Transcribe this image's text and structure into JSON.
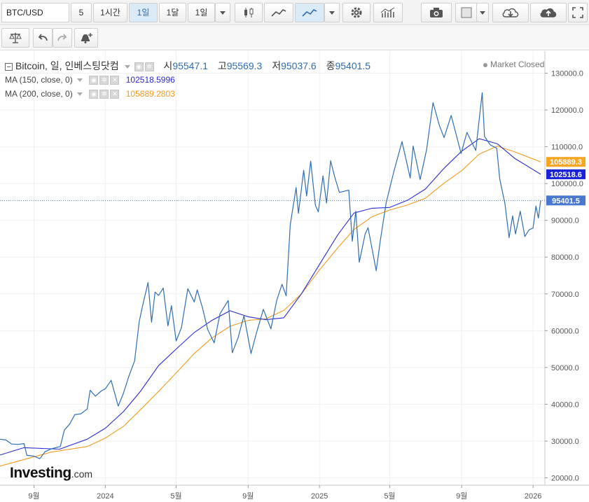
{
  "toolbar": {
    "symbol": "BTC/USD",
    "intervals": [
      "5",
      "1시간",
      "1일",
      "1달",
      "1일"
    ],
    "active_interval_index": 2
  },
  "colors": {
    "price_line": "#2f6db3",
    "ma150": "#2a2ad6",
    "ma200": "#f29b1f",
    "last_price_tag": "#4a78d0",
    "ma150_tag": "#1a22d9",
    "ma200_tag": "#f5a623",
    "grid": "#f0f0f0"
  },
  "legend": {
    "main": {
      "title": "Bitcoin, 일, 인베스팅닷컴",
      "open_label": "시",
      "open": "95547.1",
      "high_label": "고",
      "high": "95569.3",
      "low_label": "저",
      "low": "95037.6",
      "close_label": "종",
      "close": "95401.5"
    },
    "ma150": {
      "label": "MA (150, close, 0)",
      "value": "102518.5996"
    },
    "ma200": {
      "label": "MA (200, close, 0)",
      "value": "105889.2803"
    }
  },
  "market_status": "Market Closed",
  "logo": {
    "brand": "Investing",
    "suffix": ".com"
  },
  "chart_data": {
    "type": "line",
    "x_axis": {
      "tick_labels": [
        "9월",
        "2024",
        "5월",
        "9월",
        "2025",
        "5월",
        "9월",
        "2026"
      ],
      "tick_dates": [
        "2023-09-01",
        "2024-01-01",
        "2024-05-01",
        "2024-09-01",
        "2025-01-01",
        "2025-05-01",
        "2025-09-01",
        "2026-01-01"
      ],
      "range": [
        "2023-07-05",
        "2026-01-14"
      ]
    },
    "y_axis": {
      "tick_labels": [
        "20000.0",
        "30000.0",
        "40000.0",
        "50000.0",
        "60000.0",
        "70000.0",
        "80000.0",
        "90000.0",
        "100000.0",
        "110000.0",
        "120000.0",
        "130000.0"
      ],
      "range": [
        18000,
        136000
      ]
    },
    "price_tags": {
      "close": "95401.5",
      "ma150": "102518.6",
      "ma200": "105889.3"
    },
    "series": [
      {
        "id": "price",
        "values": [
          [
            "2023-07-05",
            30500
          ],
          [
            "2023-07-15",
            30300
          ],
          [
            "2023-07-25",
            29200
          ],
          [
            "2023-08-05",
            29100
          ],
          [
            "2023-08-15",
            29300
          ],
          [
            "2023-08-20",
            26100
          ],
          [
            "2023-09-01",
            25900
          ],
          [
            "2023-09-11",
            25200
          ],
          [
            "2023-09-20",
            27100
          ],
          [
            "2023-10-01",
            27900
          ],
          [
            "2023-10-16",
            28500
          ],
          [
            "2023-10-23",
            33000
          ],
          [
            "2023-11-01",
            34600
          ],
          [
            "2023-11-10",
            37200
          ],
          [
            "2023-11-20",
            37400
          ],
          [
            "2023-12-01",
            38700
          ],
          [
            "2023-12-06",
            43800
          ],
          [
            "2023-12-15",
            42200
          ],
          [
            "2023-12-25",
            43600
          ],
          [
            "2024-01-01",
            44200
          ],
          [
            "2024-01-11",
            46500
          ],
          [
            "2024-01-23",
            39500
          ],
          [
            "2024-02-01",
            43000
          ],
          [
            "2024-02-10",
            47500
          ],
          [
            "2024-02-20",
            51800
          ],
          [
            "2024-02-28",
            62500
          ],
          [
            "2024-03-05",
            67000
          ],
          [
            "2024-03-14",
            73100
          ],
          [
            "2024-03-20",
            62300
          ],
          [
            "2024-03-26",
            70500
          ],
          [
            "2024-04-01",
            69600
          ],
          [
            "2024-04-09",
            71600
          ],
          [
            "2024-04-17",
            61300
          ],
          [
            "2024-04-23",
            66800
          ],
          [
            "2024-05-01",
            57200
          ],
          [
            "2024-05-10",
            60800
          ],
          [
            "2024-05-21",
            71400
          ],
          [
            "2024-06-01",
            67800
          ],
          [
            "2024-06-06",
            71100
          ],
          [
            "2024-06-15",
            66200
          ],
          [
            "2024-06-24",
            60300
          ],
          [
            "2024-07-05",
            56700
          ],
          [
            "2024-07-15",
            64600
          ],
          [
            "2024-07-29",
            68200
          ],
          [
            "2024-08-05",
            54000
          ],
          [
            "2024-08-15",
            58100
          ],
          [
            "2024-08-25",
            64100
          ],
          [
            "2024-09-06",
            53800
          ],
          [
            "2024-09-15",
            59200
          ],
          [
            "2024-09-27",
            65800
          ],
          [
            "2024-10-10",
            60500
          ],
          [
            "2024-10-20",
            68300
          ],
          [
            "2024-10-29",
            72600
          ],
          [
            "2024-11-05",
            69500
          ],
          [
            "2024-11-12",
            88700
          ],
          [
            "2024-11-22",
            98900
          ],
          [
            "2024-11-26",
            91900
          ],
          [
            "2024-12-05",
            103600
          ],
          [
            "2024-12-10",
            96600
          ],
          [
            "2024-12-17",
            106100
          ],
          [
            "2024-12-25",
            94100
          ],
          [
            "2024-12-30",
            92300
          ],
          [
            "2025-01-07",
            102100
          ],
          [
            "2025-01-13",
            94700
          ],
          [
            "2025-01-20",
            106200
          ],
          [
            "2025-01-27",
            101800
          ],
          [
            "2025-02-04",
            97600
          ],
          [
            "2025-02-20",
            98200
          ],
          [
            "2025-02-26",
            84300
          ],
          [
            "2025-03-04",
            92500
          ],
          [
            "2025-03-10",
            78600
          ],
          [
            "2025-03-20",
            86300
          ],
          [
            "2025-03-25",
            88000
          ],
          [
            "2025-04-08",
            76300
          ],
          [
            "2025-04-15",
            84600
          ],
          [
            "2025-04-25",
            94800
          ],
          [
            "2025-05-08",
            103200
          ],
          [
            "2025-05-22",
            111400
          ],
          [
            "2025-06-05",
            101500
          ],
          [
            "2025-06-10",
            110200
          ],
          [
            "2025-06-22",
            101100
          ],
          [
            "2025-07-03",
            109200
          ],
          [
            "2025-07-14",
            122000
          ],
          [
            "2025-07-25",
            115700
          ],
          [
            "2025-08-02",
            112500
          ],
          [
            "2025-08-14",
            118500
          ],
          [
            "2025-08-31",
            108200
          ],
          [
            "2025-09-10",
            113900
          ],
          [
            "2025-09-25",
            109000
          ],
          [
            "2025-10-06",
            124700
          ],
          [
            "2025-10-10",
            112800
          ],
          [
            "2025-10-20",
            110500
          ],
          [
            "2025-10-31",
            109600
          ],
          [
            "2025-11-05",
            101300
          ],
          [
            "2025-11-14",
            94500
          ],
          [
            "2025-11-21",
            85300
          ],
          [
            "2025-11-27",
            91200
          ],
          [
            "2025-12-02",
            86300
          ],
          [
            "2025-12-10",
            92500
          ],
          [
            "2025-12-18",
            85600
          ],
          [
            "2025-12-25",
            87400
          ],
          [
            "2026-01-01",
            87900
          ],
          [
            "2026-01-06",
            93900
          ],
          [
            "2026-01-10",
            90600
          ],
          [
            "2026-01-14",
            95401.5
          ]
        ]
      },
      {
        "id": "ma150",
        "values": [
          [
            "2023-07-05",
            26200
          ],
          [
            "2023-08-15",
            28200
          ],
          [
            "2023-10-15",
            27800
          ],
          [
            "2023-12-01",
            30500
          ],
          [
            "2024-01-01",
            33500
          ],
          [
            "2024-02-01",
            38000
          ],
          [
            "2024-03-01",
            43500
          ],
          [
            "2024-04-01",
            50500
          ],
          [
            "2024-05-01",
            55000
          ],
          [
            "2024-06-01",
            59500
          ],
          [
            "2024-07-01",
            62800
          ],
          [
            "2024-08-01",
            65400
          ],
          [
            "2024-09-01",
            63800
          ],
          [
            "2024-10-01",
            63000
          ],
          [
            "2024-11-01",
            63500
          ],
          [
            "2024-12-01",
            70000
          ],
          [
            "2025-01-01",
            78000
          ],
          [
            "2025-02-01",
            86000
          ],
          [
            "2025-03-01",
            92000
          ],
          [
            "2025-04-01",
            93300
          ],
          [
            "2025-05-01",
            93500
          ],
          [
            "2025-06-01",
            95500
          ],
          [
            "2025-07-01",
            98500
          ],
          [
            "2025-08-01",
            104000
          ],
          [
            "2025-09-01",
            108800
          ],
          [
            "2025-10-01",
            112200
          ],
          [
            "2025-11-01",
            110800
          ],
          [
            "2025-12-01",
            106800
          ],
          [
            "2026-01-14",
            102518.6
          ]
        ]
      },
      {
        "id": "ma200",
        "values": [
          [
            "2023-07-05",
            23200
          ],
          [
            "2023-10-01",
            27000
          ],
          [
            "2023-12-01",
            28500
          ],
          [
            "2024-01-01",
            30800
          ],
          [
            "2024-02-01",
            34000
          ],
          [
            "2024-03-01",
            38500
          ],
          [
            "2024-04-01",
            43500
          ],
          [
            "2024-05-01",
            48500
          ],
          [
            "2024-06-01",
            53800
          ],
          [
            "2024-07-01",
            58000
          ],
          [
            "2024-08-01",
            61200
          ],
          [
            "2024-09-01",
            62800
          ],
          [
            "2024-10-01",
            63200
          ],
          [
            "2024-11-01",
            65500
          ],
          [
            "2024-12-01",
            70000
          ],
          [
            "2025-01-01",
            76500
          ],
          [
            "2025-02-01",
            82500
          ],
          [
            "2025-03-01",
            87500
          ],
          [
            "2025-04-01",
            91000
          ],
          [
            "2025-05-01",
            92800
          ],
          [
            "2025-06-01",
            94200
          ],
          [
            "2025-07-01",
            96000
          ],
          [
            "2025-08-01",
            100000
          ],
          [
            "2025-09-01",
            103500
          ],
          [
            "2025-10-01",
            108000
          ],
          [
            "2025-11-01",
            110200
          ],
          [
            "2025-12-01",
            108600
          ],
          [
            "2026-01-14",
            105889.3
          ]
        ]
      }
    ],
    "grid": true,
    "last_price_line": "dotted"
  }
}
